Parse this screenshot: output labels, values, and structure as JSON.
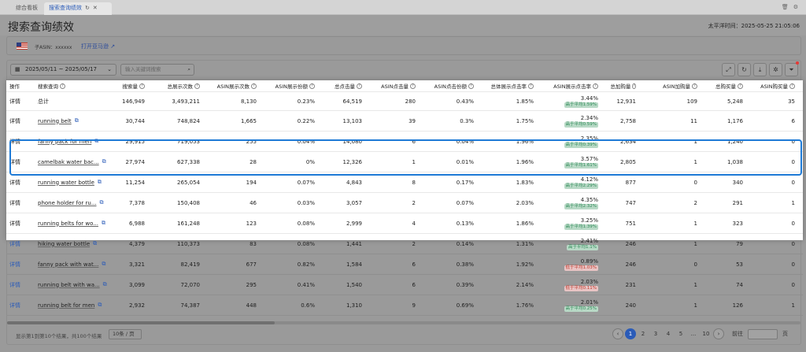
{
  "tabs": [
    {
      "label": "综合看板"
    },
    {
      "label": "搜索查询绩效"
    }
  ],
  "page": {
    "title": "搜索查询绩效",
    "time_label": "太平洋时间：",
    "time_value": "2025-05-25 21:05:06"
  },
  "asin": {
    "label": "子ASIN：xxxxxx",
    "amazon_link": "打开亚马逊"
  },
  "filters": {
    "date_range": "2025/05/11 ~ 2025/05/17",
    "keyword_placeholder": "输入关键词搜索"
  },
  "columns": [
    "操作",
    "搜索查询",
    "搜索量",
    "总展示次数",
    "ASIN展示次数",
    "ASIN展示份额",
    "总点击量",
    "ASIN点击量",
    "ASIN点击份额",
    "总体展示点击率",
    "ASIN展示点击率",
    "总加购量",
    "ASIN加购量",
    "总购买量",
    "ASIN购买量"
  ],
  "detail_label": "详情",
  "rows": [
    {
      "kw": "总计",
      "vol": "146,949",
      "imp": "3,493,211",
      "aimp": "8,130",
      "ashare": "0.23%",
      "clk": "64,519",
      "aclk": "280",
      "acshare": "0.43%",
      "ctr": "1.85%",
      "actr": "3.44%",
      "badge": "高于平均1.59%",
      "dir": "up",
      "cart": "12,931",
      "acart": "109",
      "buy": "5,248",
      "abuy": "35"
    },
    {
      "kw": "running belt",
      "vol": "30,744",
      "imp": "748,824",
      "aimp": "1,665",
      "ashare": "0.22%",
      "clk": "13,103",
      "aclk": "39",
      "acshare": "0.3%",
      "ctr": "1.75%",
      "actr": "2.34%",
      "badge": "高于平均0.59%",
      "dir": "up",
      "cart": "2,758",
      "acart": "11",
      "buy": "1,176",
      "abuy": "6"
    },
    {
      "kw": "fanny pack for men",
      "vol": "29,915",
      "imp": "719,053",
      "aimp": "255",
      "ashare": "0.04%",
      "clk": "14,080",
      "aclk": "6",
      "acshare": "0.04%",
      "ctr": "1.96%",
      "actr": "2.35%",
      "badge": "高于平均0.39%",
      "dir": "up",
      "cart": "2,634",
      "acart": "1",
      "buy": "1,240",
      "abuy": "0"
    },
    {
      "kw": "camelbak water bac...",
      "vol": "27,974",
      "imp": "627,338",
      "aimp": "28",
      "ashare": "0%",
      "clk": "12,326",
      "aclk": "1",
      "acshare": "0.01%",
      "ctr": "1.96%",
      "actr": "3.57%",
      "badge": "高于平均1.61%",
      "dir": "up",
      "cart": "2,805",
      "acart": "1",
      "buy": "1,038",
      "abuy": "0"
    },
    {
      "kw": "running water bottle",
      "vol": "11,254",
      "imp": "265,054",
      "aimp": "194",
      "ashare": "0.07%",
      "clk": "4,843",
      "aclk": "8",
      "acshare": "0.17%",
      "ctr": "1.83%",
      "actr": "4.12%",
      "badge": "高于平均2.29%",
      "dir": "up",
      "cart": "877",
      "acart": "0",
      "buy": "340",
      "abuy": "0"
    },
    {
      "kw": "phone holder for ru...",
      "vol": "7,378",
      "imp": "150,408",
      "aimp": "46",
      "ashare": "0.03%",
      "clk": "3,057",
      "aclk": "2",
      "acshare": "0.07%",
      "ctr": "2.03%",
      "actr": "4.35%",
      "badge": "高于平均2.32%",
      "dir": "up",
      "cart": "747",
      "acart": "2",
      "buy": "291",
      "abuy": "1"
    },
    {
      "kw": "running belts for wo...",
      "vol": "6,988",
      "imp": "161,248",
      "aimp": "123",
      "ashare": "0.08%",
      "clk": "2,999",
      "aclk": "4",
      "acshare": "0.13%",
      "ctr": "1.86%",
      "actr": "3.25%",
      "badge": "高于平均1.39%",
      "dir": "up",
      "cart": "751",
      "acart": "1",
      "buy": "323",
      "abuy": "0"
    },
    {
      "kw": "hiking water bottle",
      "vol": "4,379",
      "imp": "110,373",
      "aimp": "83",
      "ashare": "0.08%",
      "clk": "1,441",
      "aclk": "2",
      "acshare": "0.14%",
      "ctr": "1.31%",
      "actr": "2.41%",
      "badge": "高于平均1.1%",
      "dir": "up",
      "cart": "246",
      "acart": "1",
      "buy": "79",
      "abuy": "0"
    },
    {
      "kw": "fanny pack with wat...",
      "vol": "3,321",
      "imp": "82,419",
      "aimp": "677",
      "ashare": "0.82%",
      "clk": "1,584",
      "aclk": "6",
      "acshare": "0.38%",
      "ctr": "1.92%",
      "actr": "0.89%",
      "badge": "低于平均1.03%",
      "dir": "down",
      "cart": "246",
      "acart": "0",
      "buy": "53",
      "abuy": "0"
    },
    {
      "kw": "running belt with wa...",
      "vol": "3,099",
      "imp": "72,070",
      "aimp": "295",
      "ashare": "0.41%",
      "clk": "1,540",
      "aclk": "6",
      "acshare": "0.39%",
      "ctr": "2.14%",
      "actr": "2.03%",
      "badge": "低于平均0.11%",
      "dir": "down",
      "cart": "231",
      "acart": "1",
      "buy": "74",
      "abuy": "0"
    },
    {
      "kw": "running belt for men",
      "vol": "2,932",
      "imp": "74,387",
      "aimp": "448",
      "ashare": "0.6%",
      "clk": "1,310",
      "aclk": "9",
      "acshare": "0.69%",
      "ctr": "1.76%",
      "actr": "2.01%",
      "badge": "高于平均0.25%",
      "dir": "up",
      "cart": "240",
      "acart": "1",
      "buy": "126",
      "abuy": "1"
    }
  ],
  "footer": {
    "info": "显示第1到第10个结果，共100个结果",
    "page_size": "10条 / 页",
    "pages": [
      "1",
      "2",
      "3",
      "4",
      "5",
      "...",
      "10"
    ],
    "goto_label": "前往",
    "page_unit": "页"
  },
  "colors": {
    "accent": "#2a5bb8",
    "highlight_border": "#1e7ad6",
    "up": "#2e8b57",
    "down": "#c0392b"
  }
}
